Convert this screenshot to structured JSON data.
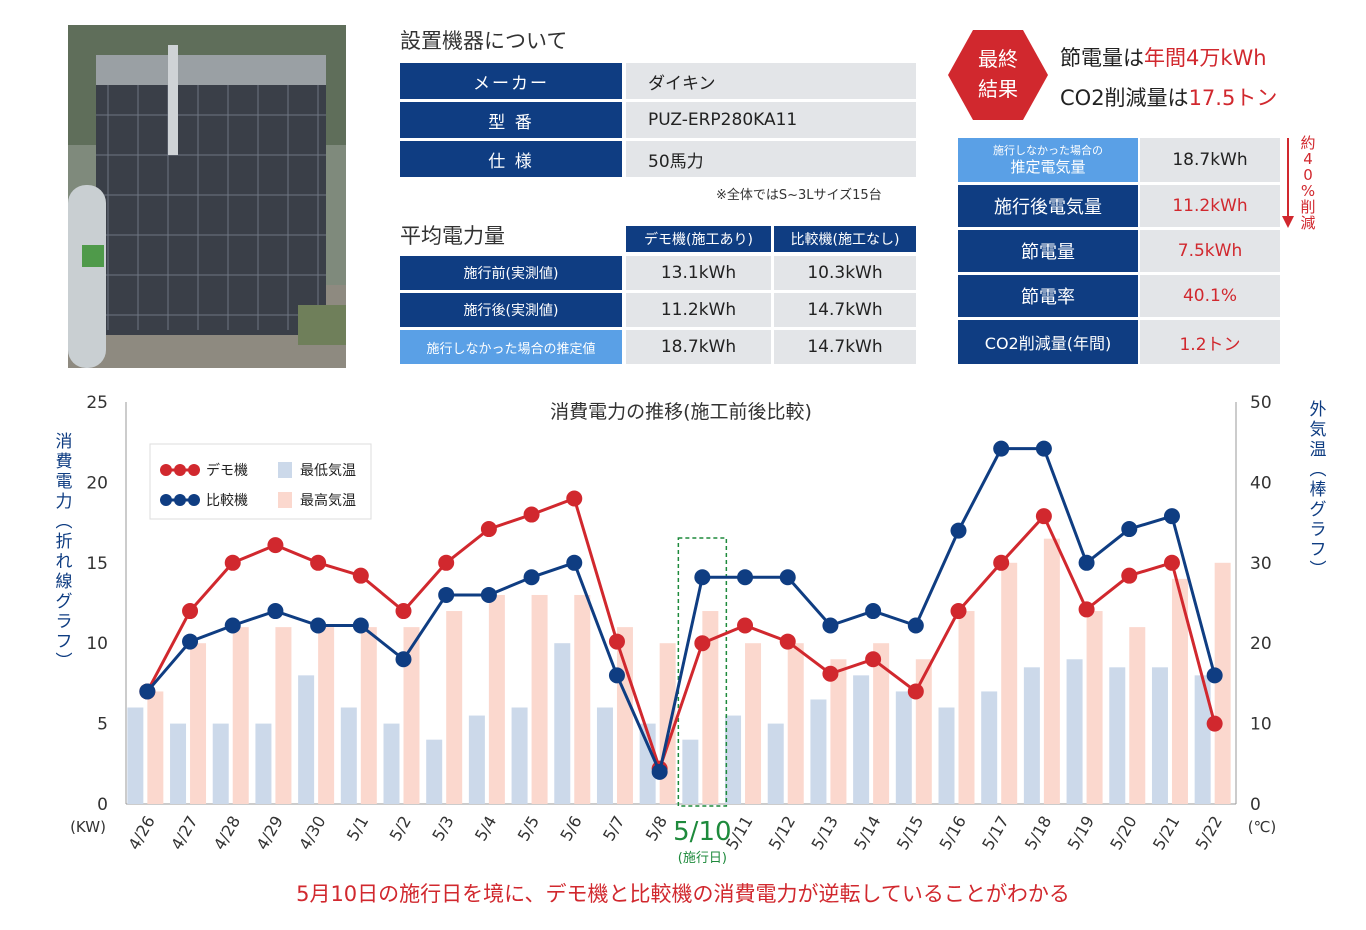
{
  "device": {
    "title": "設置機器について",
    "rows": [
      {
        "label": "メーカー",
        "value": "ダイキン"
      },
      {
        "label": "型 番",
        "value": "PUZ-ERP280KA11"
      },
      {
        "label": "仕 様",
        "value": "50馬力"
      }
    ],
    "note": "※全体ではS~3Lサイズ15台"
  },
  "avg": {
    "title": "平均電力量",
    "col_headers": [
      "デモ機(施工あり)",
      "比較機(施工なし)"
    ],
    "rows": [
      {
        "label": "施行前(実測値)",
        "demo": "13.1kWh",
        "comp": "10.3kWh"
      },
      {
        "label": "施行後(実測値)",
        "demo": "11.2kWh",
        "comp": "14.7kWh"
      },
      {
        "label": "施行しなかった場合の推定値",
        "demo": "18.7kWh",
        "comp": "14.7kWh"
      }
    ]
  },
  "final": {
    "badge_line1": "最終",
    "badge_line2": "結果",
    "line1_a": "節電量は",
    "line1_b": "年間4万kWh",
    "line2_a": "CO2削減量は",
    "line2_b": "17.5トン",
    "rows": [
      {
        "label_small": "施行しなかった場合の",
        "label": "推定電気量",
        "value": "18.7kWh"
      },
      {
        "label": "施行後電気量",
        "value": "11.2kWh"
      },
      {
        "label": "節電量",
        "value": "7.5kWh"
      },
      {
        "label": "節電率",
        "value": "40.1%"
      },
      {
        "label": "CO2削減量(年間)",
        "value": "1.2トン"
      }
    ],
    "vertical_note": "約40%削減",
    "colors": {
      "navy": "#0f3d82",
      "light_blue": "#5aa0e6",
      "red": "#d1282e",
      "gray": "#e3e5e8"
    }
  },
  "caption": "5月10日の施行日を境に、デモ機と比較機の消費電力が逆転していることがわかる",
  "chart_data": {
    "type": "line",
    "title": "消費電力の推移(施工前後比較)",
    "ylabel": "消費電力(折れ線グラフ)",
    "y2label": "外気温(棒グラフ)",
    "yunit": "(KW)",
    "y2unit": "(℃)",
    "ylim": [
      0,
      25
    ],
    "y2lim": [
      0,
      50
    ],
    "yticks": [
      0,
      5,
      10,
      15,
      20,
      25
    ],
    "y2ticks": [
      0,
      10,
      20,
      30,
      40,
      50
    ],
    "categories": [
      "4/26",
      "4/27",
      "4/28",
      "4/29",
      "4/30",
      "5/1",
      "5/2",
      "5/3",
      "5/4",
      "5/5",
      "5/6",
      "5/7",
      "5/8",
      "5/10",
      "5/11",
      "5/12",
      "5/13",
      "5/14",
      "5/15",
      "5/16",
      "5/17",
      "5/18",
      "5/19",
      "5/20",
      "5/21",
      "5/22"
    ],
    "highlight": {
      "category": "5/10",
      "label": "5/10",
      "sublabel": "(施行日)",
      "color": "#1e8a3c"
    },
    "series": [
      {
        "name": "デモ機",
        "axis": "left",
        "kind": "line",
        "color": "#d1282e",
        "values": [
          7,
          12,
          15,
          16.1,
          15,
          14.2,
          12,
          15,
          17.1,
          18,
          19,
          10.1,
          2.2,
          10,
          11.1,
          10.1,
          8.1,
          9,
          7,
          12,
          15,
          17.9,
          12.1,
          14.2,
          15,
          5
        ]
      },
      {
        "name": "比較機",
        "axis": "left",
        "kind": "line",
        "color": "#0f3d82",
        "values": [
          7,
          10.1,
          11.1,
          12,
          11.1,
          11.1,
          9,
          13,
          13,
          14.1,
          15,
          8,
          2,
          14.1,
          14.1,
          14.1,
          11.1,
          12,
          11.1,
          17,
          22.1,
          22.1,
          15,
          17.1,
          17.9,
          8
        ]
      },
      {
        "name": "最低気温",
        "axis": "right",
        "kind": "bar",
        "color": "#ccd9ea",
        "values": [
          12,
          10,
          10,
          10,
          16,
          12,
          10,
          8,
          11,
          12,
          20,
          12,
          10,
          8,
          11,
          10,
          13,
          16,
          14,
          12,
          14,
          17,
          18,
          17,
          17,
          16
        ]
      },
      {
        "name": "最高気温",
        "axis": "right",
        "kind": "bar",
        "color": "#fbd8ce",
        "values": [
          14,
          20,
          22,
          22,
          22,
          22,
          22,
          24,
          26,
          26,
          26,
          22,
          20,
          24,
          20,
          20,
          18,
          20,
          18,
          24,
          30,
          33,
          24,
          22,
          28,
          30
        ]
      }
    ],
    "legend_position": "top-left",
    "grid": false
  }
}
